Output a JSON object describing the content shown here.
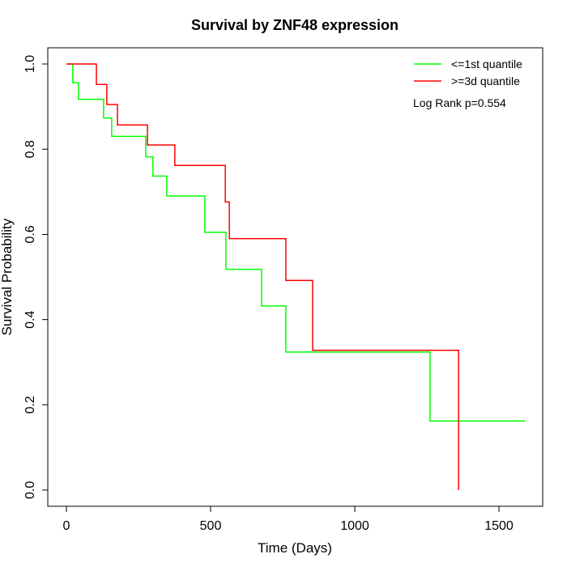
{
  "chart_data": {
    "type": "line",
    "title": "Survival by ZNF48 expression",
    "xlabel": "Time (Days)",
    "ylabel": "Survival Probability",
    "xlim": [
      0,
      1600
    ],
    "ylim": [
      0,
      1
    ],
    "xticks": [
      "0",
      "500",
      "1000",
      "1500"
    ],
    "xtick_values": [
      0,
      500,
      1000,
      1500
    ],
    "yticks": [
      "0.0",
      "0.2",
      "0.4",
      "0.6",
      "0.8",
      "1.0"
    ],
    "ytick_values": [
      0,
      0.2,
      0.4,
      0.6,
      0.8,
      1.0
    ],
    "annotation": "Log Rank p=0.554",
    "legend_position": "top-right",
    "series": [
      {
        "name": "<=1st quantile",
        "color": "#00ff00",
        "steps": [
          [
            0,
            1.0
          ],
          [
            22,
            0.956
          ],
          [
            42,
            0.917
          ],
          [
            129,
            0.873
          ],
          [
            157,
            0.83
          ],
          [
            275,
            0.782
          ],
          [
            300,
            0.737
          ],
          [
            348,
            0.69
          ],
          [
            480,
            0.605
          ],
          [
            553,
            0.518
          ],
          [
            677,
            0.432
          ],
          [
            761,
            0.324
          ],
          [
            1261,
            0.162
          ]
        ],
        "end": 1590
      },
      {
        "name": ">=3d quantile",
        "color": "#ff0000",
        "steps": [
          [
            0,
            1.0
          ],
          [
            104,
            0.952
          ],
          [
            140,
            0.905
          ],
          [
            177,
            0.857
          ],
          [
            281,
            0.81
          ],
          [
            376,
            0.762
          ],
          [
            551,
            0.676
          ],
          [
            565,
            0.59
          ],
          [
            761,
            0.492
          ],
          [
            854,
            0.328
          ],
          [
            1360,
            0.0
          ]
        ],
        "end": 1360
      }
    ]
  }
}
